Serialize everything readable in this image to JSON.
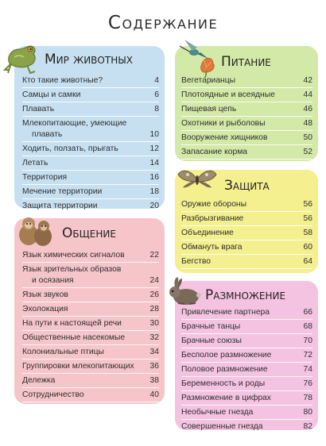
{
  "title": "Содержание",
  "sections": [
    {
      "title": "Мир животных",
      "illustration": "frog-icon",
      "items": [
        {
          "text": "Кто такие животные?",
          "page": "4"
        },
        {
          "text": "Самцы и самки",
          "page": "6"
        },
        {
          "text": "Плавать",
          "page": "8"
        },
        {
          "text": "Млекопитающие, умеющие",
          "text2": "плавать",
          "page": "10"
        },
        {
          "text": "Ходить, ползать, прыгать",
          "page": "12"
        },
        {
          "text": "Летать",
          "page": "14"
        },
        {
          "text": "Территория",
          "page": "16"
        },
        {
          "text": "Мечение территории",
          "page": "18"
        },
        {
          "text": "Защита территории",
          "page": "20"
        }
      ]
    },
    {
      "title": "Питание",
      "illustration": "hummingbird-icon",
      "items": [
        {
          "text": "Вегетарианцы",
          "page": "42"
        },
        {
          "text": "Плотоядные и всеядные",
          "page": "44"
        },
        {
          "text": "Пищевая цепь",
          "page": "46"
        },
        {
          "text": "Охотники и рыболовы",
          "page": "48"
        },
        {
          "text": "Вооружение хищников",
          "page": "50"
        },
        {
          "text": "Запасание корма",
          "page": "52"
        }
      ]
    },
    {
      "title": "Защита",
      "illustration": "moth-icon",
      "items": [
        {
          "text": "Оружие обороны",
          "page": "56"
        },
        {
          "text": "Разбрызгивание",
          "page": "56"
        },
        {
          "text": "Объединение",
          "page": "58"
        },
        {
          "text": "Обмануть врага",
          "page": "60"
        },
        {
          "text": "Бегство",
          "page": "64"
        }
      ]
    },
    {
      "title": "Общение",
      "illustration": "monkeys-icon",
      "items": [
        {
          "text": "Язык химических сигналов",
          "page": "22"
        },
        {
          "text": "Язык зрительных образов",
          "text2": "и осязания",
          "page": "24"
        },
        {
          "text": "Язык звуков",
          "page": "26"
        },
        {
          "text": "Эхолокация",
          "page": "28"
        },
        {
          "text": "На пути к настоящей речи",
          "page": "30"
        },
        {
          "text": "Общественные насекомые",
          "page": "32"
        },
        {
          "text": "Колониальные птицы",
          "page": "34"
        },
        {
          "text": "Группировки млекопитающих",
          "page": "36"
        },
        {
          "text": "Дележка",
          "page": "38"
        },
        {
          "text": "Сотрудничество",
          "page": "40"
        }
      ]
    },
    {
      "title": "Размножение",
      "illustration": "rabbit-icon",
      "items": [
        {
          "text": "Привлечение партнера",
          "page": "66"
        },
        {
          "text": "Брачные танцы",
          "page": "68"
        },
        {
          "text": "Брачные союзы",
          "page": "70"
        },
        {
          "text": "Бесполое размножение",
          "page": "72"
        },
        {
          "text": "Половое размножение",
          "page": "74"
        },
        {
          "text": "Беременность и роды",
          "page": "76"
        },
        {
          "text": "Размножение в цифрах",
          "page": "78"
        },
        {
          "text": "Необычные гнезда",
          "page": "80"
        },
        {
          "text": "Совершенные гнезда",
          "page": "82"
        }
      ]
    }
  ]
}
